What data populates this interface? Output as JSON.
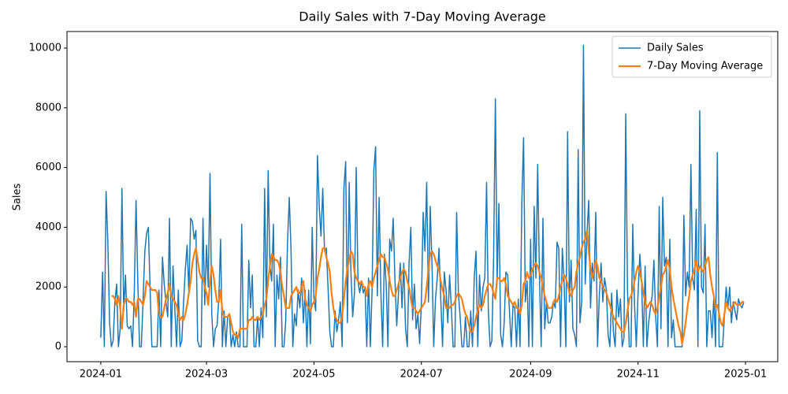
{
  "chart_data": {
    "type": "line",
    "title": "Daily Sales with 7-Day Moving Average",
    "y_label": "Sales",
    "xlim": [
      -19.2,
      384.3
    ],
    "ylim": [
      -501,
      10554
    ],
    "xticks": [
      {
        "value": 0,
        "label": "2024-01"
      },
      {
        "value": 60,
        "label": "2024-03"
      },
      {
        "value": 121,
        "label": "2024-05"
      },
      {
        "value": 182,
        "label": "2024-07"
      },
      {
        "value": 244,
        "label": "2024-09"
      },
      {
        "value": 305,
        "label": "2024-11"
      },
      {
        "value": 366,
        "label": "2025-01"
      }
    ],
    "yticks": [
      0,
      2000,
      4000,
      6000,
      8000,
      10000
    ],
    "legend": "upper right",
    "x": [
      0,
      1,
      2,
      3,
      4,
      5,
      6,
      7,
      8,
      9,
      10,
      11,
      12,
      13,
      14,
      15,
      16,
      17,
      18,
      19,
      20,
      21,
      22,
      23,
      24,
      25,
      26,
      27,
      28,
      29,
      30,
      31,
      32,
      33,
      34,
      35,
      36,
      37,
      38,
      39,
      40,
      41,
      42,
      43,
      44,
      45,
      46,
      47,
      48,
      49,
      50,
      51,
      52,
      53,
      54,
      55,
      56,
      57,
      58,
      59,
      60,
      61,
      62,
      63,
      64,
      65,
      66,
      67,
      68,
      69,
      70,
      71,
      72,
      73,
      74,
      75,
      76,
      77,
      78,
      79,
      80,
      81,
      82,
      83,
      84,
      85,
      86,
      87,
      88,
      89,
      90,
      91,
      92,
      93,
      94,
      95,
      96,
      97,
      98,
      99,
      100,
      101,
      102,
      103,
      104,
      105,
      106,
      107,
      108,
      109,
      110,
      111,
      112,
      113,
      114,
      115,
      116,
      117,
      118,
      119,
      120,
      121,
      122,
      123,
      124,
      125,
      126,
      127,
      128,
      129,
      130,
      131,
      132,
      133,
      134,
      135,
      136,
      137,
      138,
      139,
      140,
      141,
      142,
      143,
      144,
      145,
      146,
      147,
      148,
      149,
      150,
      151,
      152,
      153,
      154,
      155,
      156,
      157,
      158,
      159,
      160,
      161,
      162,
      163,
      164,
      165,
      166,
      167,
      168,
      169,
      170,
      171,
      172,
      173,
      174,
      175,
      176,
      177,
      178,
      179,
      180,
      181,
      182,
      183,
      184,
      185,
      186,
      187,
      188,
      189,
      190,
      191,
      192,
      193,
      194,
      195,
      196,
      197,
      198,
      199,
      200,
      201,
      202,
      203,
      204,
      205,
      206,
      207,
      208,
      209,
      210,
      211,
      212,
      213,
      214,
      215,
      216,
      217,
      218,
      219,
      220,
      221,
      222,
      223,
      224,
      225,
      226,
      227,
      228,
      229,
      230,
      231,
      232,
      233,
      234,
      235,
      236,
      237,
      238,
      239,
      240,
      241,
      242,
      243,
      244,
      245,
      246,
      247,
      248,
      249,
      250,
      251,
      252,
      253,
      254,
      255,
      256,
      257,
      258,
      259,
      260,
      261,
      262,
      263,
      264,
      265,
      266,
      267,
      268,
      269,
      270,
      271,
      272,
      273,
      274,
      275,
      276,
      277,
      278,
      279,
      280,
      281,
      282,
      283,
      284,
      285,
      286,
      287,
      288,
      289,
      290,
      291,
      292,
      293,
      294,
      295,
      296,
      297,
      298,
      299,
      300,
      301,
      302,
      303,
      304,
      305,
      306,
      307,
      308,
      309,
      310,
      311,
      312,
      313,
      314,
      315,
      316,
      317,
      318,
      319,
      320,
      321,
      322,
      323,
      324,
      325,
      326,
      327,
      328,
      329,
      330,
      331,
      332,
      333,
      334,
      335,
      336,
      337,
      338,
      339,
      340,
      341,
      342,
      343,
      344,
      345,
      346,
      347,
      348,
      349,
      350,
      351,
      352,
      353,
      354,
      355,
      356,
      357,
      358,
      359,
      360,
      361,
      362,
      363,
      364,
      365
    ],
    "series": [
      {
        "name": "Daily Sales",
        "color": "#1f77b4",
        "width": 1.5,
        "values": [
          300,
          2500,
          0,
          5200,
          3500,
          800,
          0,
          200,
          1500,
          2100,
          0,
          600,
          5300,
          1200,
          2400,
          700,
          600,
          700,
          0,
          1800,
          4900,
          2200,
          0,
          0,
          1600,
          3200,
          3800,
          4000,
          1900,
          0,
          0,
          0,
          0,
          1900,
          0,
          3000,
          2100,
          1500,
          1000,
          4300,
          0,
          2700,
          1300,
          0,
          1900,
          0,
          200,
          1500,
          2600,
          3400,
          1800,
          4300,
          4200,
          3600,
          3900,
          200,
          0,
          0,
          4300,
          1400,
          3400,
          2000,
          5800,
          1100,
          0,
          600,
          700,
          1600,
          3600,
          0,
          1200,
          0,
          1000,
          1100,
          0,
          400,
          0,
          500,
          0,
          0,
          4100,
          0,
          0,
          0,
          2900,
          1300,
          2400,
          0,
          0,
          1000,
          0,
          1300,
          300,
          5300,
          1000,
          5900,
          2700,
          2200,
          4100,
          0,
          2400,
          1600,
          3000,
          0,
          0,
          900,
          3500,
          5000,
          3200,
          0,
          1100,
          700,
          1900,
          1300,
          2300,
          800,
          1900,
          0,
          1900,
          100,
          4000,
          1600,
          1200,
          6400,
          4700,
          3700,
          5300,
          3200,
          3300,
          2000,
          500,
          0,
          0,
          1200,
          500,
          900,
          1500,
          0,
          5300,
          6200,
          800,
          5500,
          2500,
          1000,
          1800,
          6000,
          2200,
          1800,
          2200,
          1800,
          2000,
          0,
          2300,
          0,
          1900,
          5900,
          6700,
          1700,
          5000,
          1800,
          0,
          3100,
          2100,
          0,
          3600,
          3200,
          4300,
          2200,
          700,
          1800,
          2800,
          1300,
          2800,
          600,
          0,
          2800,
          4000,
          900,
          2100,
          600,
          1100,
          100,
          1500,
          4500,
          3200,
          5500,
          1500,
          4700,
          2800,
          0,
          1600,
          2300,
          3300,
          1600,
          0,
          2500,
          1900,
          800,
          2400,
          1300,
          0,
          0,
          4500,
          1800,
          1000,
          0,
          0,
          1000,
          0,
          0,
          1200,
          0,
          2300,
          3200,
          0,
          2400,
          1200,
          2000,
          2300,
          5500,
          1200,
          0,
          200,
          3000,
          8300,
          2200,
          4800,
          400,
          0,
          800,
          2500,
          2400,
          1200,
          0,
          1400,
          1300,
          0,
          1600,
          0,
          4800,
          7000,
          1500,
          2200,
          0,
          3600,
          0,
          4700,
          2300,
          6100,
          2400,
          0,
          4300,
          600,
          1500,
          800,
          800,
          1000,
          1500,
          1300,
          3500,
          3300,
          0,
          3300,
          2200,
          0,
          7200,
          1500,
          2900,
          600,
          400,
          0,
          6600,
          800,
          1500,
          10100,
          2100,
          3800,
          4900,
          1300,
          2800,
          2200,
          4500,
          0,
          1700,
          2800,
          1500,
          2300,
          1900,
          400,
          0,
          1800,
          500,
          0,
          1900,
          1000,
          1600,
          0,
          300,
          7800,
          1900,
          0,
          0,
          4100,
          1400,
          0,
          1800,
          3100,
          2200,
          0,
          2700,
          0,
          800,
          1300,
          1700,
          2900,
          1000,
          0,
          4700,
          600,
          5000,
          2700,
          3000,
          0,
          3600,
          300,
          900,
          0,
          0,
          0,
          0,
          0,
          4400,
          1700,
          2500,
          2000,
          6100,
          2300,
          1900,
          4600,
          0,
          7900,
          2000,
          1800,
          4100,
          0,
          1200,
          1200,
          300,
          1700,
          0,
          6500,
          0,
          0,
          0,
          1000,
          2000,
          1300,
          2000,
          800,
          1500,
          1200,
          900,
          1600,
          1400,
          1300,
          1500
        ]
      },
      {
        "name": "7-Day Moving Average",
        "color": "#ff7f0e",
        "width": 2.2,
        "values": [
          null,
          null,
          null,
          null,
          null,
          null,
          1700,
          1700,
          1600,
          1400,
          1700,
          1300,
          600,
          1400,
          1600,
          1600,
          1500,
          1500,
          1400,
          1500,
          1000,
          1600,
          1600,
          1500,
          1400,
          1700,
          2200,
          2100,
          2000,
          1900,
          1900,
          1900,
          1800,
          1100,
          1000,
          1000,
          1300,
          1600,
          1800,
          2100,
          1700,
          1600,
          1500,
          1400,
          1100,
          900,
          1000,
          900,
          1100,
          1400,
          1800,
          2200,
          2800,
          3100,
          3300,
          2900,
          2500,
          2300,
          2300,
          2000,
          1800,
          1400,
          2200,
          2700,
          2400,
          1900,
          1500,
          1500,
          1900,
          1200,
          1000,
          1000,
          1000,
          1100,
          800,
          500,
          400,
          400,
          300,
          600,
          600,
          600,
          600,
          600,
          900,
          900,
          1000,
          900,
          900,
          1000,
          900,
          1000,
          1100,
          1400,
          1600,
          2200,
          2700,
          3100,
          3000,
          2900,
          2900,
          2800,
          2500,
          2000,
          1700,
          1300,
          1300,
          1300,
          1700,
          1800,
          1900,
          2000,
          1800,
          1800,
          2000,
          2200,
          1600,
          1400,
          1300,
          1200,
          1400,
          1500,
          1700,
          2300,
          2600,
          3000,
          3300,
          3300,
          3000,
          2800,
          2500,
          1800,
          1300,
          1000,
          900,
          800,
          800,
          1000,
          1600,
          2200,
          2600,
          2900,
          3200,
          3100,
          2500,
          2300,
          2200,
          2100,
          2200,
          2000,
          2000,
          1700,
          2100,
          2200,
          2000,
          2300,
          2500,
          2700,
          2900,
          3100,
          3000,
          3000,
          2800,
          2600,
          2200,
          1900,
          1700,
          1700,
          1900,
          2100,
          2300,
          2500,
          2600,
          2500,
          2200,
          2000,
          1600,
          1300,
          1300,
          1200,
          1100,
          1200,
          1300,
          1400,
          1500,
          2000,
          2600,
          3100,
          3200,
          3100,
          2900,
          2700,
          2600,
          2200,
          1900,
          1700,
          1300,
          1300,
          1300,
          1400,
          1400,
          1500,
          1700,
          1800,
          1700,
          1600,
          1300,
          1100,
          1000,
          700,
          500,
          500,
          700,
          1000,
          1200,
          1400,
          1300,
          1400,
          1700,
          1900,
          2100,
          2100,
          2000,
          1800,
          1600,
          2300,
          2300,
          2200,
          2200,
          2300,
          2100,
          1700,
          1600,
          1500,
          1400,
          1500,
          1300,
          1300,
          1100,
          1400,
          2100,
          2200,
          2500,
          2300,
          2400,
          2600,
          2700,
          2800,
          2700,
          2500,
          2300,
          2000,
          1700,
          1500,
          1300,
          1300,
          1300,
          1500,
          1600,
          1500,
          1700,
          2000,
          2200,
          2400,
          2300,
          2100,
          1800,
          1700,
          1900,
          2000,
          2500,
          2800,
          3000,
          3300,
          3500,
          3600,
          3900,
          3200,
          2600,
          2300,
          2500,
          2900,
          2700,
          2300,
          2200,
          2000,
          1900,
          1800,
          1600,
          1400,
          1200,
          1000,
          900,
          800,
          700,
          600,
          500,
          500,
          800,
          1200,
          1600,
          1700,
          1900,
          2200,
          2500,
          2700,
          2500,
          2200,
          1800,
          1500,
          1300,
          1400,
          1500,
          1400,
          1200,
          1100,
          1300,
          1700,
          2000,
          2400,
          2500,
          2700,
          2900,
          2600,
          2000,
          1600,
          1300,
          1000,
          700,
          500,
          100,
          400,
          800,
          1300,
          1700,
          2200,
          2400,
          2600,
          2900,
          2500,
          2700,
          2600,
          2500,
          2700,
          2900,
          3000,
          2400,
          2000,
          1700,
          1300,
          1400,
          1100,
          800,
          700,
          1100,
          1500,
          1300,
          1200,
          1300,
          1400,
          1500,
          1400,
          1400,
          1400,
          1500,
          1500
        ]
      }
    ]
  }
}
